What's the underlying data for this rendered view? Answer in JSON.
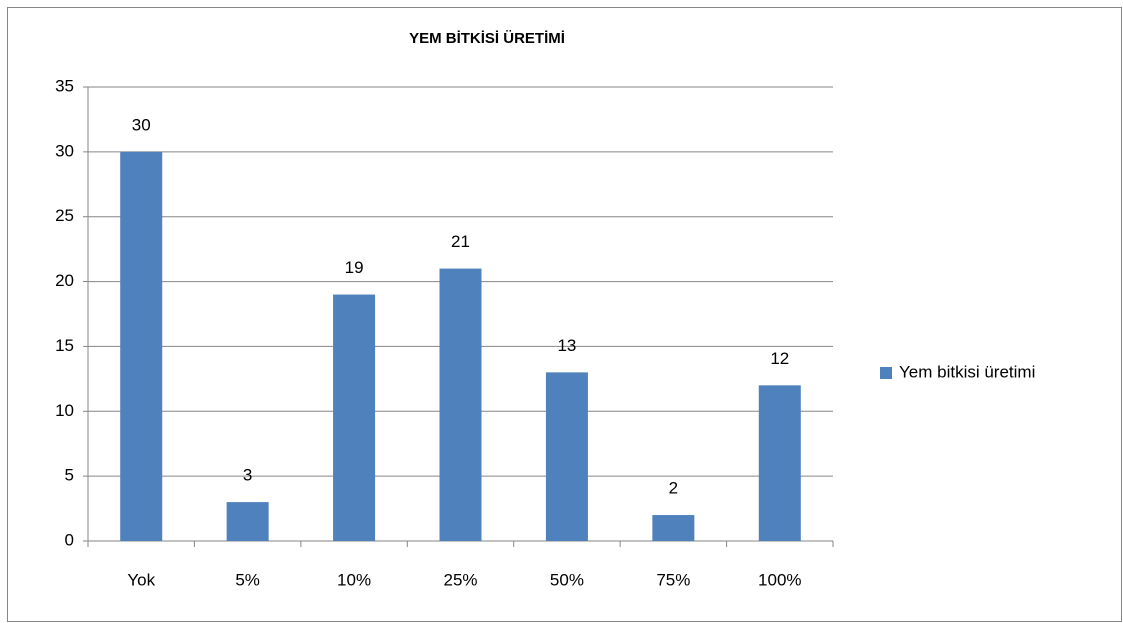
{
  "chart_data": {
    "type": "bar",
    "title": "YEM BİTKİSİ ÜRETİMİ",
    "categories": [
      "Yok",
      "5%",
      "10%",
      "25%",
      "50%",
      "75%",
      "100%"
    ],
    "series": [
      {
        "name": "Yem bitkisi üretimi",
        "color": "#4f81bd",
        "values": [
          30,
          3,
          19,
          21,
          13,
          2,
          12
        ]
      }
    ],
    "ylim": [
      0,
      35
    ],
    "yticks": [
      0,
      5,
      10,
      15,
      20,
      25,
      30,
      35
    ],
    "grid": true,
    "legend": "right"
  }
}
